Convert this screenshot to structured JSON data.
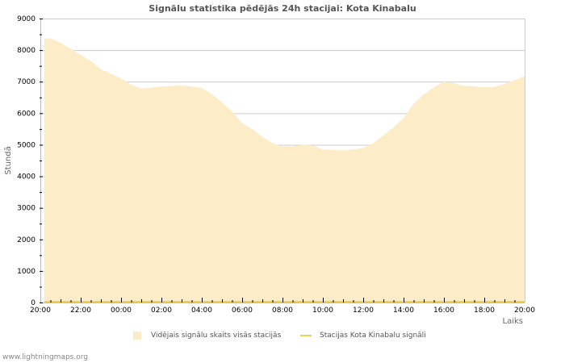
{
  "page": {
    "title": "Signālu statistika pēdējās 24h stacijai: Kota Kinabalu",
    "footer": "www.lightningmaps.org"
  },
  "colors": {
    "area_fill": "#fdecc8",
    "station_line": "#f0d050",
    "grid": "#cccccc",
    "axis": "#bbbbbb"
  },
  "legend": {
    "items": [
      {
        "label": "Vidējais signālu skaits visās stacijās",
        "type": "area"
      },
      {
        "label": "Stacijas Kota Kinabalu signāli",
        "type": "line"
      }
    ]
  },
  "chart_data": {
    "type": "area",
    "title": "Signālu statistika pēdējās 24h stacijai: Kota Kinabalu",
    "xlabel": "Laiks",
    "ylabel": "Stundā",
    "ylim": [
      0,
      9000
    ],
    "yticks": [
      0,
      1000,
      2000,
      3000,
      4000,
      5000,
      6000,
      7000,
      8000,
      9000
    ],
    "xticks": [
      "20:00",
      "22:00",
      "00:00",
      "02:00",
      "04:00",
      "06:00",
      "08:00",
      "10:00",
      "12:00",
      "14:00",
      "16:00",
      "18:00",
      "20:00"
    ],
    "grid": true,
    "legend_position": "bottom",
    "x_hours": [
      0.2,
      0.5,
      1,
      1.5,
      2,
      2.5,
      3,
      3.5,
      4,
      4.5,
      5,
      6,
      7,
      8,
      8.5,
      9,
      9.5,
      10,
      10.5,
      11,
      11.5,
      12,
      12.5,
      13,
      13.5,
      14,
      15,
      15.5,
      16,
      16.5,
      17,
      17.5,
      18,
      18.5,
      19,
      19.5,
      20,
      20.5,
      21,
      22,
      22.5,
      23,
      23.5,
      24
    ],
    "series": [
      {
        "name": "Vidējais signālu skaits visās stacijās",
        "type": "area",
        "values": [
          8360,
          8380,
          8230,
          8050,
          7850,
          7650,
          7400,
          7250,
          7100,
          6900,
          6780,
          6850,
          6880,
          6800,
          6600,
          6350,
          6050,
          5680,
          5500,
          5250,
          5050,
          4950,
          4950,
          5000,
          4980,
          4850,
          4820,
          4850,
          4900,
          5050,
          5300,
          5550,
          5850,
          6300,
          6600,
          6820,
          7000,
          6950,
          6870,
          6820,
          6830,
          6930,
          7050,
          7180
        ]
      },
      {
        "name": "Stacijas Kota Kinabalu signāli",
        "type": "line",
        "values": [
          0,
          0,
          0,
          0,
          0,
          0,
          0,
          0,
          0,
          0,
          0,
          0,
          0,
          0,
          0,
          0,
          0,
          0,
          0,
          0,
          0,
          0,
          0,
          0,
          0,
          0,
          0,
          0,
          0,
          0,
          0,
          0,
          0,
          0,
          0,
          0,
          0,
          0,
          0,
          0,
          0,
          0,
          0,
          0
        ]
      }
    ]
  }
}
